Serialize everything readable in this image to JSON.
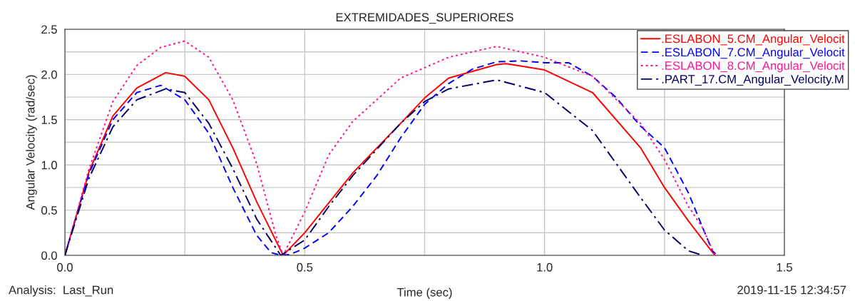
{
  "chart_data": {
    "type": "line",
    "title": "EXTREMIDADES_SUPERIORES",
    "xlabel": "Time (sec)",
    "ylabel": "Angular Velocity (rad/sec)",
    "xlim": [
      0,
      1.5
    ],
    "ylim": [
      0,
      2.5
    ],
    "xticks": [
      {
        "value": 0,
        "label": "0.0"
      },
      {
        "value": 0.25,
        "label": null
      },
      {
        "value": 0.5,
        "label": "0.5"
      },
      {
        "value": 0.75,
        "label": null
      },
      {
        "value": 1.0,
        "label": "1.0"
      },
      {
        "value": 1.25,
        "label": null
      },
      {
        "value": 1.5,
        "label": "1.5"
      }
    ],
    "yticks": [
      {
        "value": 0,
        "label": "0.0"
      },
      {
        "value": 0.25,
        "label": null
      },
      {
        "value": 0.5,
        "label": "0.5"
      },
      {
        "value": 0.75,
        "label": null
      },
      {
        "value": 1.0,
        "label": "1.0"
      },
      {
        "value": 1.25,
        "label": null
      },
      {
        "value": 1.5,
        "label": "1.5"
      },
      {
        "value": 1.75,
        "label": null
      },
      {
        "value": 2.0,
        "label": "2.0"
      },
      {
        "value": 2.25,
        "label": null
      },
      {
        "value": 2.5,
        "label": "2.5"
      }
    ],
    "grid": true,
    "legend": "top right",
    "marker": "none",
    "annotations": [
      "Analysis:  Last_Run",
      "2019-11-15 12:34:57"
    ],
    "series": [
      {
        "name": ".ESLABON_5.CM_Angular_Velocit",
        "color": "#ff0000",
        "line_style": "solid",
        "x": [
          0,
          0.05,
          0.1,
          0.15,
          0.21,
          0.25,
          0.3,
          0.35,
          0.4,
          0.455,
          0.5,
          0.6,
          0.7,
          0.75,
          0.8,
          0.9,
          0.92,
          1.0,
          1.1,
          1.2,
          1.25,
          1.3,
          1.355
        ],
        "values": [
          0,
          0.92,
          1.54,
          1.85,
          2.02,
          1.98,
          1.72,
          1.19,
          0.59,
          0,
          0.25,
          0.91,
          1.46,
          1.74,
          1.96,
          2.11,
          2.12,
          2.05,
          1.8,
          1.19,
          0.75,
          0.38,
          0
        ]
      },
      {
        "name": ".ESLABON_7.CM_Angular_Velocit",
        "color": "#0000ff",
        "line_style": "dashed",
        "x": [
          0,
          0.05,
          0.1,
          0.15,
          0.2,
          0.25,
          0.3,
          0.35,
          0.4,
          0.43,
          0.45,
          0.47,
          0.5,
          0.55,
          0.6,
          0.65,
          0.7,
          0.75,
          0.8,
          0.85,
          0.9,
          0.95,
          1.0,
          1.05,
          1.1,
          1.15,
          1.2,
          1.25,
          1.3,
          1.33,
          1.35,
          1.36
        ],
        "values": [
          0,
          0.9,
          1.5,
          1.8,
          1.88,
          1.72,
          1.35,
          0.75,
          0.22,
          0.03,
          0,
          0.01,
          0.08,
          0.25,
          0.54,
          0.88,
          1.3,
          1.67,
          1.9,
          2.06,
          2.14,
          2.15,
          2.13,
          2.13,
          1.98,
          1.74,
          1.43,
          1.19,
          0.69,
          0.3,
          0.05,
          0
        ]
      },
      {
        "name": ".ESLABON_8.CM_Angular_Velocit",
        "color": "#ff1493",
        "line_style": "dotted",
        "x": [
          0,
          0.05,
          0.1,
          0.15,
          0.2,
          0.25,
          0.3,
          0.35,
          0.4,
          0.44,
          0.455,
          0.5,
          0.55,
          0.6,
          0.7,
          0.8,
          0.9,
          1.0,
          1.1,
          1.2,
          1.25,
          1.3,
          1.33,
          1.355
        ],
        "values": [
          0,
          0.95,
          1.7,
          2.1,
          2.3,
          2.37,
          2.19,
          1.72,
          1.01,
          0.22,
          0,
          0.48,
          1.11,
          1.48,
          1.96,
          2.19,
          2.31,
          2.19,
          1.98,
          1.46,
          1.06,
          0.54,
          0.3,
          0
        ]
      },
      {
        "name": ".PART_17.CM_Angular_Velocity.M",
        "color": "#000066",
        "line_style": "dashdot",
        "x": [
          0,
          0.05,
          0.1,
          0.15,
          0.21,
          0.25,
          0.3,
          0.35,
          0.4,
          0.45,
          0.5,
          0.55,
          0.6,
          0.7,
          0.75,
          0.8,
          0.9,
          1.0,
          1.1,
          1.15,
          1.2,
          1.25,
          1.3,
          1.33
        ],
        "values": [
          0,
          0.85,
          1.42,
          1.72,
          1.84,
          1.8,
          1.46,
          0.96,
          0.4,
          0,
          0.17,
          0.54,
          0.88,
          1.46,
          1.7,
          1.84,
          1.94,
          1.8,
          1.38,
          1.01,
          0.64,
          0.28,
          0.05,
          0
        ]
      }
    ]
  }
}
